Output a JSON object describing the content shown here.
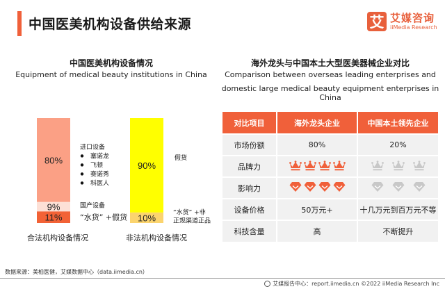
{
  "header": {
    "title": "中国医美机构设备供给来源",
    "accent_color": "#f0603a"
  },
  "logo": {
    "glyph": "艾",
    "name_cn": "艾媒咨询",
    "name_en": "iiMedia Research"
  },
  "left_section": {
    "title_cn": "中国医美机构设备情况",
    "title_en": "Equipment of medical beauty institutions in China"
  },
  "right_section": {
    "title_cn": "海外龙头与中国本土大型医美器械企业对比",
    "title_en_line1": "Comparison between overseas leading enterprises and",
    "title_en_line2": "domestic large medical beauty equipment enterprises in China"
  },
  "chart_data": {
    "type": "bar",
    "stacked": true,
    "title": "中国医美机构设备情况",
    "subtitle": "Equipment of medical beauty institutions in China",
    "categories": [
      "合法机构设备情况",
      "非法机构设备情况"
    ],
    "ylim": [
      0,
      100
    ],
    "unit": "%",
    "grid": false,
    "bars": [
      {
        "category": "合法机构设备情况",
        "segments": [
          {
            "label": "进口设备",
            "value": 80,
            "display": "80%",
            "color": "#fba085",
            "notes": [
              "塞诺龙",
              "飞顿",
              "赛诺秀",
              "科医人"
            ]
          },
          {
            "label": "国产设备",
            "value": 9,
            "display": "9%",
            "color": "#fde0d6",
            "notes": []
          },
          {
            "label": "“水货” +假货",
            "value": 11,
            "display": "11%",
            "color": "#f26236",
            "notes": []
          }
        ]
      },
      {
        "category": "非法机构设备情况",
        "segments": [
          {
            "label": "假货",
            "value": 90,
            "display": "90%",
            "color": "#ffff00",
            "notes": []
          },
          {
            "label": "“水货” +非正规渠道正品",
            "value": 10,
            "display": "10%",
            "color": "#fbd46e",
            "notes": []
          }
        ]
      }
    ]
  },
  "table": {
    "headers": [
      "对比项目",
      "海外龙头企业",
      "中国本土领先企业"
    ],
    "rows": [
      {
        "label": "市场份额",
        "overseas": "80%",
        "domestic": "20%"
      },
      {
        "label": "品牌力",
        "overseas_icon": "crown-icon",
        "overseas_count": 4,
        "domestic_icon": "crown-icon",
        "domestic_count": 3
      },
      {
        "label": "影响力",
        "overseas_icon": "diamond-icon",
        "overseas_count": 4,
        "domestic_icon": "diamond-icon",
        "domestic_count": 3
      },
      {
        "label": "设备价格",
        "overseas": "50万元+",
        "domestic": "十几万元到百万元不等"
      },
      {
        "label": "科技含量",
        "overseas": "高",
        "domestic": "不断提升"
      }
    ],
    "active_icon_color": "#f0603a",
    "inactive_icon_color": "#c8c8c8"
  },
  "source": "数据来源：美柏医健，艾媒数据中心（data.iimedia.cn）",
  "footer": {
    "text": "艾媒报告中心：report.iimedia.cn   ©2022  iiMedia Research  Inc"
  }
}
